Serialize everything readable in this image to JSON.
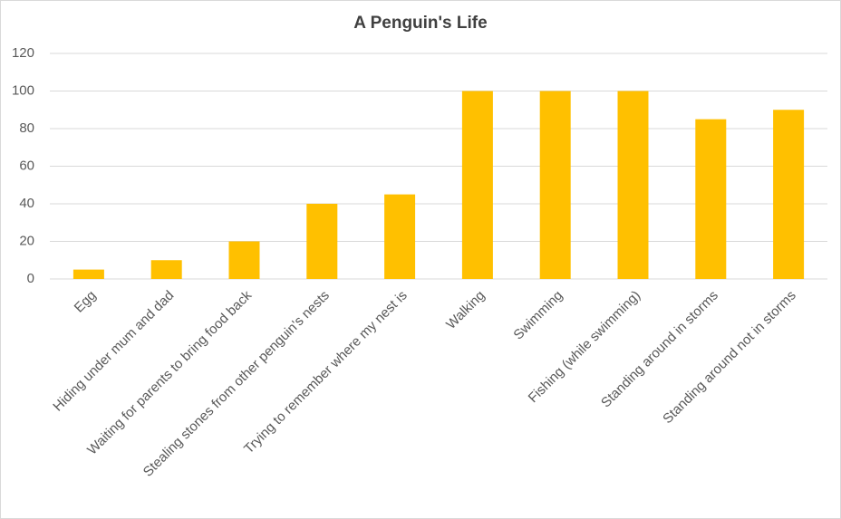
{
  "chart_data": {
    "type": "bar",
    "title": "A Penguin's Life",
    "categories": [
      "Egg",
      "Hiding under mum and dad",
      "Waiting for parents to bring food back",
      "Stealing stones from other penguin's nests",
      "Trying to remember where my nest is",
      "Walking",
      "Swimming",
      "Fishing (while swimming)",
      "Standing around in storms",
      "Standing around not in storms"
    ],
    "values": [
      5,
      10,
      20,
      40,
      45,
      100,
      100,
      100,
      85,
      90
    ],
    "color": "#ffc000",
    "ylim": [
      0,
      120
    ],
    "yticks": [
      0,
      20,
      40,
      60,
      80,
      100,
      120
    ],
    "grid": true
  }
}
